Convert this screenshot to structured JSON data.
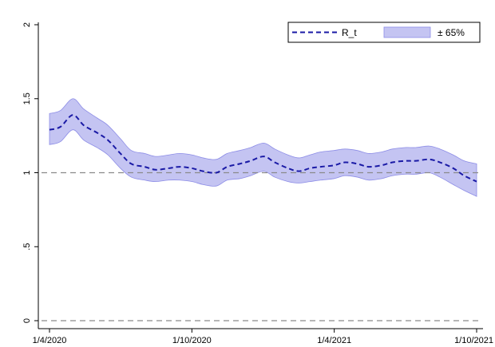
{
  "chart_data": {
    "type": "line",
    "title": "",
    "xlabel": "",
    "ylabel": "",
    "x_ticks": [
      "1/4/2020",
      "1/10/2020",
      "1/4/2021",
      "1/10/2021"
    ],
    "y_ticks": [
      "0",
      ".5",
      "1",
      "1.5",
      "2"
    ],
    "ylim": [
      0,
      2
    ],
    "xlim": [
      "2020-04-01",
      "2021-10-01"
    ],
    "reference_lines": [
      0,
      1
    ],
    "grid": false,
    "legend_position": "top-right",
    "legend": [
      {
        "label": "R_t",
        "style": "dashed line",
        "color": "#1a1aa6"
      },
      {
        "label": "± 65%",
        "style": "shaded band",
        "color": "#c4c4f2"
      }
    ],
    "series": [
      {
        "name": "R_t",
        "x": [
          "2020-04-01",
          "2020-04-15",
          "2020-05-01",
          "2020-05-15",
          "2020-06-01",
          "2020-06-15",
          "2020-07-01",
          "2020-07-15",
          "2020-08-01",
          "2020-08-15",
          "2020-09-01",
          "2020-09-15",
          "2020-10-01",
          "2020-10-15",
          "2020-11-01",
          "2020-11-15",
          "2020-12-01",
          "2020-12-15",
          "2021-01-01",
          "2021-01-15",
          "2021-02-01",
          "2021-02-15",
          "2021-03-01",
          "2021-03-15",
          "2021-04-01",
          "2021-04-15",
          "2021-05-01",
          "2021-05-15",
          "2021-06-01",
          "2021-06-15",
          "2021-07-01",
          "2021-07-15",
          "2021-08-01",
          "2021-08-15",
          "2021-09-01",
          "2021-09-15",
          "2021-10-01"
        ],
        "y": [
          1.29,
          1.31,
          1.39,
          1.32,
          1.27,
          1.22,
          1.13,
          1.06,
          1.04,
          1.02,
          1.03,
          1.04,
          1.03,
          1.01,
          1.0,
          1.04,
          1.06,
          1.08,
          1.11,
          1.07,
          1.03,
          1.01,
          1.03,
          1.04,
          1.05,
          1.07,
          1.06,
          1.04,
          1.05,
          1.07,
          1.08,
          1.08,
          1.09,
          1.07,
          1.03,
          0.98,
          0.94
        ],
        "lower": [
          1.19,
          1.21,
          1.29,
          1.22,
          1.17,
          1.12,
          1.03,
          0.97,
          0.95,
          0.94,
          0.95,
          0.95,
          0.94,
          0.92,
          0.91,
          0.95,
          0.96,
          0.98,
          1.01,
          0.97,
          0.94,
          0.93,
          0.94,
          0.95,
          0.96,
          0.98,
          0.97,
          0.95,
          0.96,
          0.98,
          0.99,
          0.99,
          1.0,
          0.97,
          0.92,
          0.88,
          0.84
        ],
        "upper": [
          1.4,
          1.42,
          1.5,
          1.43,
          1.37,
          1.32,
          1.23,
          1.15,
          1.13,
          1.11,
          1.12,
          1.13,
          1.12,
          1.1,
          1.09,
          1.13,
          1.15,
          1.17,
          1.2,
          1.16,
          1.12,
          1.1,
          1.12,
          1.14,
          1.15,
          1.16,
          1.15,
          1.13,
          1.14,
          1.16,
          1.17,
          1.17,
          1.18,
          1.16,
          1.12,
          1.08,
          1.06
        ]
      }
    ]
  }
}
